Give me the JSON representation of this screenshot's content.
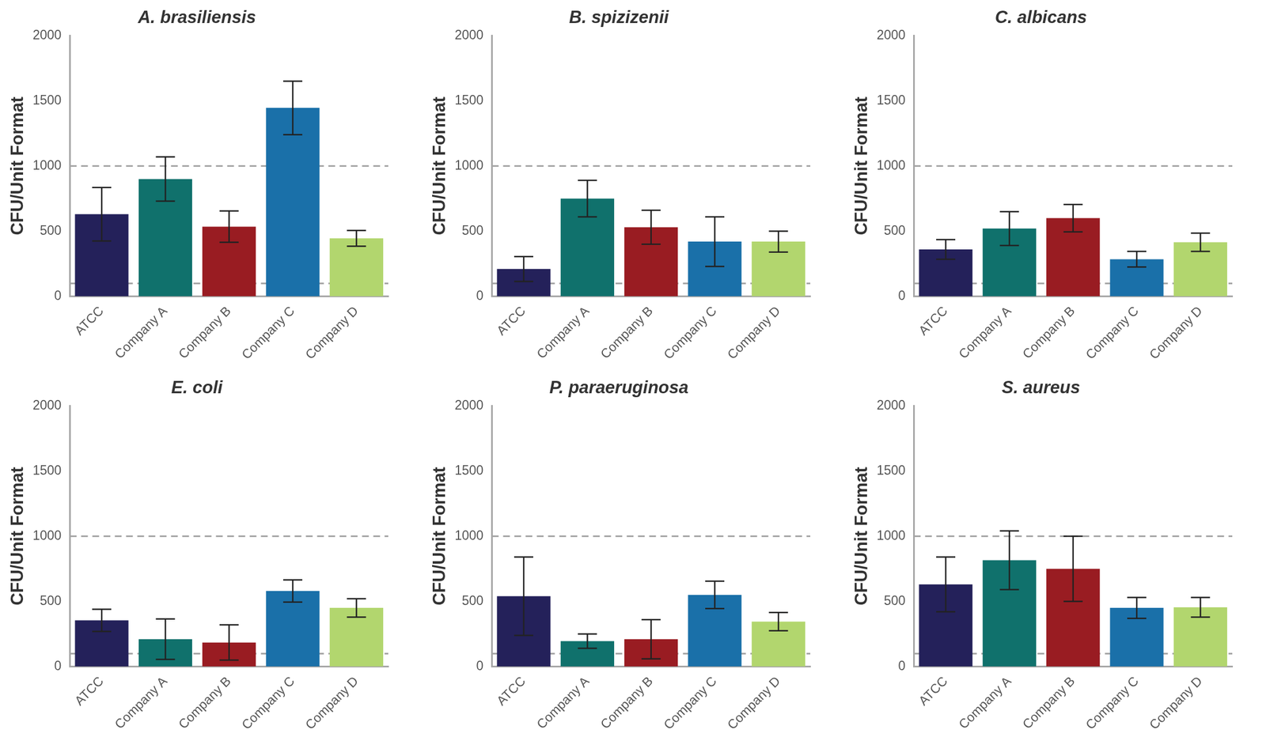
{
  "chart_data": [
    {
      "type": "bar",
      "title": "A. brasiliensis",
      "y_label": "CFU/Unit Format",
      "categories": [
        "ATCC",
        "Company A",
        "Company B",
        "Company C",
        "Company D"
      ],
      "values": [
        630,
        900,
        535,
        1445,
        445
      ],
      "errors": [
        205,
        170,
        120,
        205,
        60
      ],
      "colors": [
        "#24215a",
        "#10716c",
        "#991c22",
        "#1a70a9",
        "#b2d66e"
      ],
      "ylim": [
        0,
        2000
      ],
      "yticks": [
        0,
        500,
        1000,
        1500,
        2000
      ],
      "hlines": [
        100,
        1000
      ],
      "grid": false
    },
    {
      "type": "bar",
      "title": "B. spizizenii",
      "y_label": "CFU/Unit Format",
      "categories": [
        "ATCC",
        "Company A",
        "Company B",
        "Company C",
        "Company D"
      ],
      "values": [
        210,
        750,
        530,
        420,
        420
      ],
      "errors": [
        95,
        140,
        130,
        190,
        80
      ],
      "colors": [
        "#24215a",
        "#10716c",
        "#991c22",
        "#1a70a9",
        "#b2d66e"
      ],
      "ylim": [
        0,
        2000
      ],
      "yticks": [
        0,
        500,
        1000,
        1500,
        2000
      ],
      "hlines": [
        100,
        1000
      ],
      "grid": false
    },
    {
      "type": "bar",
      "title": "C. albicans",
      "y_label": "CFU/Unit Format",
      "categories": [
        "ATCC",
        "Company A",
        "Company B",
        "Company C",
        "Company D"
      ],
      "values": [
        360,
        520,
        600,
        285,
        415
      ],
      "errors": [
        75,
        130,
        105,
        60,
        70
      ],
      "colors": [
        "#24215a",
        "#10716c",
        "#991c22",
        "#1a70a9",
        "#b2d66e"
      ],
      "ylim": [
        0,
        2000
      ],
      "yticks": [
        0,
        500,
        1000,
        1500,
        2000
      ],
      "hlines": [
        100,
        1000
      ],
      "grid": false
    },
    {
      "type": "bar",
      "title": "E. coli",
      "y_label": "CFU/Unit Format",
      "categories": [
        "ATCC",
        "Company A",
        "Company B",
        "Company C",
        "Company D"
      ],
      "values": [
        355,
        210,
        185,
        580,
        450
      ],
      "errors": [
        85,
        155,
        135,
        85,
        70
      ],
      "colors": [
        "#24215a",
        "#10716c",
        "#991c22",
        "#1a70a9",
        "#b2d66e"
      ],
      "ylim": [
        0,
        2000
      ],
      "yticks": [
        0,
        500,
        1000,
        1500,
        2000
      ],
      "hlines": [
        100,
        1000
      ],
      "grid": false
    },
    {
      "type": "bar",
      "title": "P. paraeruginosa",
      "y_label": "CFU/Unit Format",
      "categories": [
        "ATCC",
        "Company A",
        "Company B",
        "Company C",
        "Company D"
      ],
      "values": [
        540,
        195,
        210,
        550,
        345
      ],
      "errors": [
        300,
        55,
        150,
        105,
        70
      ],
      "colors": [
        "#24215a",
        "#10716c",
        "#991c22",
        "#1a70a9",
        "#b2d66e"
      ],
      "ylim": [
        0,
        2000
      ],
      "yticks": [
        0,
        500,
        1000,
        1500,
        2000
      ],
      "hlines": [
        100,
        1000
      ],
      "grid": false
    },
    {
      "type": "bar",
      "title": "S. aureus",
      "y_label": "CFU/Unit Format",
      "categories": [
        "ATCC",
        "Company A",
        "Company B",
        "Company C",
        "Company D"
      ],
      "values": [
        630,
        815,
        750,
        450,
        455
      ],
      "errors": [
        210,
        225,
        250,
        80,
        75
      ],
      "colors": [
        "#24215a",
        "#10716c",
        "#991c22",
        "#1a70a9",
        "#b2d66e"
      ],
      "ylim": [
        0,
        2000
      ],
      "yticks": [
        0,
        500,
        1000,
        1500,
        2000
      ],
      "hlines": [
        100,
        1000
      ],
      "grid": false
    }
  ]
}
